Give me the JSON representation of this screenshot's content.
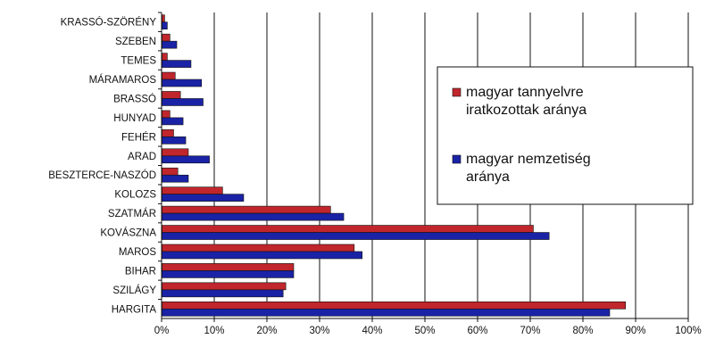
{
  "chart_data": {
    "type": "bar",
    "orientation": "horizontal",
    "categories": [
      "KRASSÓ-SZÖRÉNY",
      "SZEBEN",
      "TEMES",
      "MÁRAMAROS",
      "BRASSÓ",
      "HUNYAD",
      "FEHÉR",
      "ARAD",
      "BESZTERCE-NASZÓD",
      "KOLOZS",
      "SZATMÁR",
      "KOVÁSZNA",
      "MAROS",
      "BIHAR",
      "SZILÁGY",
      "HARGITA"
    ],
    "series": [
      {
        "name": "magyar tannyelvre iratkozottak aránya",
        "color": "#c0262c",
        "values": [
          0.5,
          1.5,
          1.0,
          2.5,
          3.5,
          1.5,
          2.2,
          5.0,
          3.0,
          11.5,
          32.0,
          70.5,
          36.5,
          25.0,
          23.5,
          88.0
        ]
      },
      {
        "name": "magyar nemzetiség aránya",
        "color": "#1a22a6",
        "values": [
          1.0,
          2.8,
          5.5,
          7.5,
          7.8,
          4.0,
          4.5,
          9.0,
          5.0,
          15.5,
          34.5,
          73.5,
          38.0,
          25.0,
          23.0,
          85.0
        ]
      }
    ],
    "xlim": [
      0,
      100
    ],
    "xticks": [
      "0%",
      "10%",
      "20%",
      "30%",
      "40%",
      "50%",
      "60%",
      "70%",
      "80%",
      "90%",
      "100%"
    ],
    "grid": true,
    "legend": "right",
    "title": "",
    "xlabel": "",
    "ylabel": ""
  }
}
